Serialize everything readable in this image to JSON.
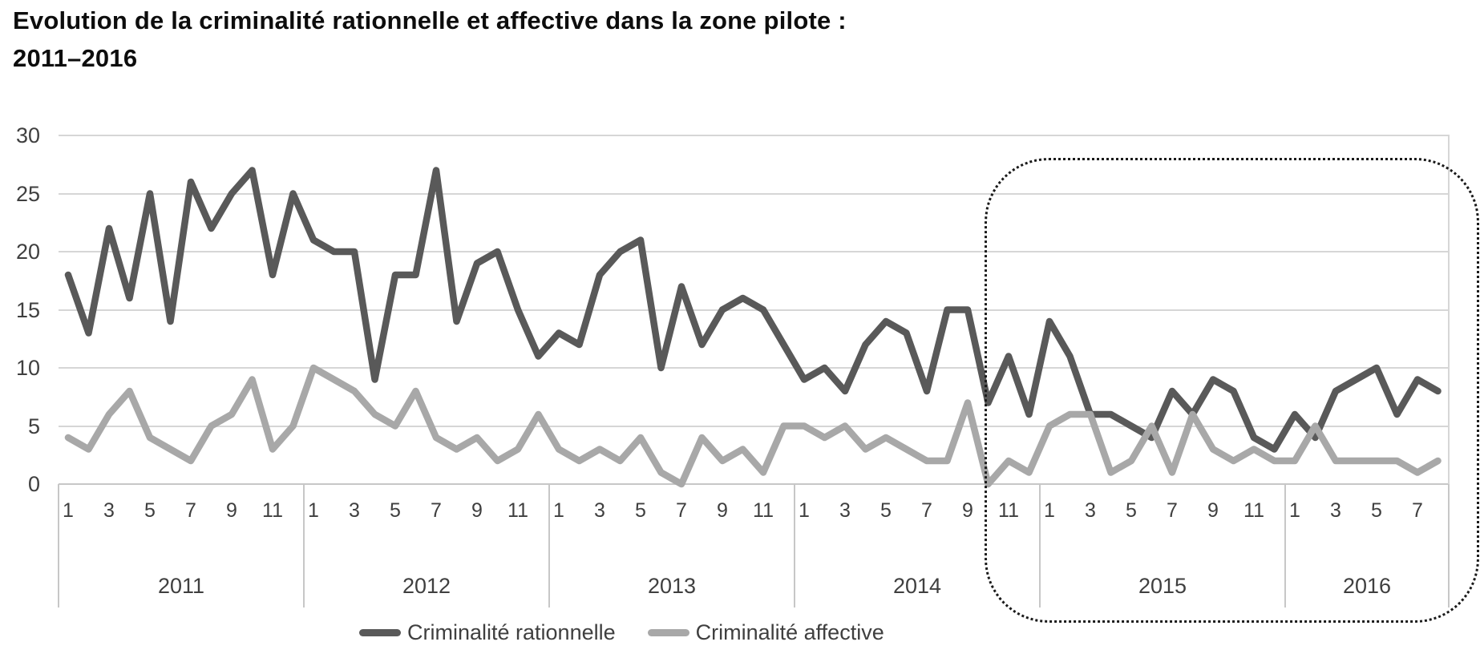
{
  "title": {
    "line1": "Evolution de la criminalité rationnelle et affective dans la zone pilote :",
    "line2": "2011–2016"
  },
  "chart_data": {
    "type": "line",
    "title": "Evolution de la criminalité rationnelle et affective dans la zone pilote : 2011–2016",
    "ylim": [
      0,
      30
    ],
    "yticks": [
      0,
      5,
      10,
      15,
      20,
      25,
      30
    ],
    "grid": "horizontal",
    "x_axis": {
      "years": [
        {
          "label": "2011",
          "n_months": 12,
          "tick_labels": [
            "1",
            "3",
            "5",
            "7",
            "9",
            "11"
          ]
        },
        {
          "label": "2012",
          "n_months": 12,
          "tick_labels": [
            "1",
            "3",
            "5",
            "7",
            "9",
            "11"
          ]
        },
        {
          "label": "2013",
          "n_months": 12,
          "tick_labels": [
            "1",
            "3",
            "5",
            "7",
            "9",
            "11"
          ]
        },
        {
          "label": "2014",
          "n_months": 12,
          "tick_labels": [
            "1",
            "3",
            "5",
            "7",
            "9",
            "11"
          ]
        },
        {
          "label": "2015",
          "n_months": 12,
          "tick_labels": [
            "1",
            "3",
            "5",
            "7",
            "9",
            "11"
          ]
        },
        {
          "label": "2016",
          "n_months": 8,
          "tick_labels": [
            "1",
            "3",
            "5",
            "7"
          ]
        }
      ]
    },
    "series": [
      {
        "name": "Criminalité rationnelle",
        "color": "#595959",
        "values": [
          18,
          13,
          22,
          16,
          25,
          14,
          26,
          22,
          25,
          27,
          18,
          25,
          21,
          20,
          20,
          9,
          18,
          18,
          27,
          14,
          19,
          20,
          15,
          11,
          13,
          12,
          18,
          20,
          21,
          10,
          17,
          12,
          15,
          16,
          15,
          12,
          9,
          10,
          8,
          12,
          14,
          13,
          8,
          15,
          15,
          7,
          11,
          6,
          14,
          11,
          6,
          6,
          5,
          4,
          8,
          6,
          9,
          8,
          4,
          3,
          6,
          4,
          8,
          9,
          10,
          6,
          9,
          8
        ]
      },
      {
        "name": "Criminalité affective",
        "color": "#a8a8a8",
        "values": [
          4,
          3,
          6,
          8,
          4,
          3,
          2,
          5,
          6,
          9,
          3,
          5,
          10,
          9,
          8,
          6,
          5,
          8,
          4,
          3,
          4,
          2,
          3,
          6,
          3,
          2,
          3,
          2,
          4,
          1,
          0,
          4,
          2,
          3,
          1,
          5,
          5,
          4,
          5,
          3,
          4,
          3,
          2,
          2,
          7,
          0,
          2,
          1,
          5,
          6,
          6,
          1,
          2,
          5,
          1,
          6,
          3,
          2,
          3,
          2,
          2,
          5,
          2,
          2,
          2,
          2,
          1,
          2
        ]
      }
    ],
    "annotation": {
      "shape": "dotted-rounded-rectangle",
      "spans_labels": [
        "2015",
        "2016"
      ]
    },
    "legend_position": "bottom-center"
  },
  "legend": {
    "items": [
      {
        "label": "Criminalité rationnelle",
        "color": "#595959"
      },
      {
        "label": "Criminalité affective",
        "color": "#a8a8a8"
      }
    ]
  }
}
